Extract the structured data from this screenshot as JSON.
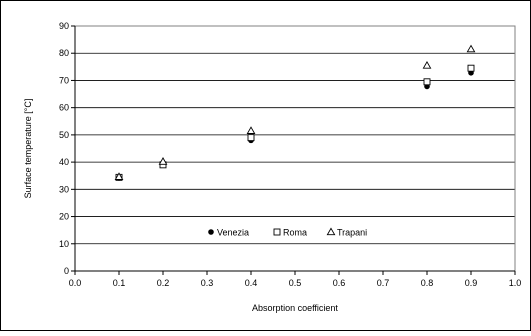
{
  "chart_data": {
    "type": "scatter",
    "title": "",
    "xlabel": "Absorption coefficient",
    "ylabel": "Surface temperature [°C]",
    "xlim": [
      0.0,
      1.0
    ],
    "ylim": [
      0,
      90
    ],
    "x_ticks": [
      "0.0",
      "0.1",
      "0.2",
      "0.3",
      "0.4",
      "0.5",
      "0.6",
      "0.7",
      "0.8",
      "0.9",
      "1.0"
    ],
    "y_ticks": [
      "0",
      "10",
      "20",
      "30",
      "40",
      "50",
      "60",
      "70",
      "80",
      "90"
    ],
    "grid": "horizontal",
    "legend_position": "bottom-center",
    "series": [
      {
        "name": "Venezia",
        "marker": "filled-circle",
        "color": "#000000",
        "x": [
          0.1,
          0.2,
          0.4,
          0.8,
          0.9
        ],
        "y": [
          34.2,
          39.2,
          48.0,
          67.8,
          72.8
        ]
      },
      {
        "name": "Roma",
        "marker": "open-square",
        "color": "#000000",
        "x": [
          0.1,
          0.2,
          0.4,
          0.8,
          0.9
        ],
        "y": [
          34.4,
          39.0,
          49.0,
          69.5,
          74.5
        ]
      },
      {
        "name": "Trapani",
        "marker": "open-triangle",
        "color": "#000000",
        "x": [
          0.1,
          0.2,
          0.4,
          0.8,
          0.9
        ],
        "y": [
          34.6,
          40.2,
          51.5,
          75.5,
          81.5
        ]
      }
    ]
  }
}
